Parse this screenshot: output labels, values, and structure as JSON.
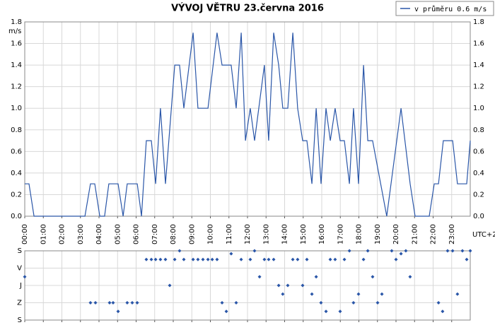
{
  "chart_data": [
    {
      "type": "line",
      "title": "VÝVOJ VĚTRU  23.června 2016",
      "y_label": "m/s",
      "x_label": "UTC+2",
      "legend": "top-right",
      "grid": true,
      "color": "#2a56a8",
      "series": [
        {
          "name": "v průměru 0.6 m/s",
          "color": "#2a56a8",
          "x": [
            0,
            0.23,
            0.5,
            3.24,
            3.54,
            3.77,
            4.04,
            4.3,
            4.53,
            5.03,
            5.3,
            5.52,
            6.06,
            6.29,
            6.55,
            6.82,
            7.05,
            7.31,
            7.58,
            8.08,
            8.34,
            8.57,
            9.07,
            9.33,
            9.87,
            10.36,
            10.63,
            11.12,
            11.39,
            11.66,
            11.89,
            12.15,
            12.38,
            12.91,
            13.14,
            13.41,
            13.68,
            13.9,
            14.17,
            14.44,
            14.7,
            14.97,
            15.2,
            15.47,
            15.7,
            15.96,
            16.23,
            16.46,
            16.72,
            16.99,
            17.22,
            17.49,
            17.71,
            17.98,
            18.25,
            18.48,
            18.74,
            19.5,
            20.27,
            20.76,
            21.03,
            21.79,
            22.06,
            22.29,
            22.55,
            23.05,
            23.31,
            23.81,
            24
          ],
          "values": [
            0.3,
            0.3,
            0,
            0,
            0.3,
            0.3,
            0,
            0,
            0.3,
            0.3,
            0,
            0.3,
            0.3,
            0,
            0.7,
            0.7,
            0.3,
            1.0,
            0.3,
            1.4,
            1.4,
            1.0,
            1.7,
            1.0,
            1.0,
            1.7,
            1.4,
            1.4,
            1.0,
            1.7,
            0.7,
            1.0,
            0.7,
            1.4,
            0.7,
            1.7,
            1.4,
            1.0,
            1.0,
            1.7,
            1.0,
            0.7,
            0.7,
            0.3,
            1.0,
            0.3,
            1.0,
            0.7,
            1.0,
            0.7,
            0.7,
            0.3,
            1.0,
            0.3,
            1.4,
            0.7,
            0.7,
            0,
            1.0,
            0.3,
            0,
            0,
            0.3,
            0.3,
            0.7,
            0.7,
            0.3,
            0.3,
            0.7
          ]
        }
      ],
      "xlim": [
        0,
        24
      ],
      "xticks": [
        {
          "value": 0,
          "label": "00:00"
        },
        {
          "value": 1,
          "label": "01:00"
        },
        {
          "value": 2,
          "label": "02:00"
        },
        {
          "value": 3,
          "label": "03:00"
        },
        {
          "value": 4,
          "label": "04:00"
        },
        {
          "value": 5,
          "label": "05:00"
        },
        {
          "value": 6,
          "label": "06:00"
        },
        {
          "value": 7,
          "label": "07:00"
        },
        {
          "value": 8,
          "label": "08:00"
        },
        {
          "value": 9,
          "label": "09:00"
        },
        {
          "value": 10,
          "label": "10:00"
        },
        {
          "value": 11,
          "label": "11:00"
        },
        {
          "value": 12,
          "label": "12:00"
        },
        {
          "value": 13,
          "label": "13:00"
        },
        {
          "value": 14,
          "label": "14:00"
        },
        {
          "value": 15,
          "label": "15:00"
        },
        {
          "value": 16,
          "label": "16:00"
        },
        {
          "value": 17,
          "label": "17:00"
        },
        {
          "value": 18,
          "label": "18:00"
        },
        {
          "value": 19,
          "label": "19:00"
        },
        {
          "value": 20,
          "label": "20:00"
        },
        {
          "value": 21,
          "label": "21:00"
        },
        {
          "value": 22,
          "label": "22:00"
        },
        {
          "value": 23,
          "label": "23:00"
        }
      ],
      "ylim": [
        0,
        1.8
      ],
      "yticks": [
        {
          "value": 0,
          "label": "0.0"
        },
        0.2,
        0.4,
        0.6,
        0.8,
        {
          "value": 1,
          "label": "1.0"
        },
        1.2,
        1.4,
        1.6,
        1.8
      ]
    },
    {
      "type": "scatter",
      "grid": true,
      "color": "#2a56a8",
      "x": [
        0,
        3.54,
        3.81,
        4.57,
        4.76,
        5.03,
        5.52,
        5.79,
        6.06,
        6.55,
        6.82,
        7.05,
        7.31,
        7.58,
        7.81,
        8.08,
        8.34,
        8.57,
        9.07,
        9.33,
        9.6,
        9.87,
        10.1,
        10.36,
        10.63,
        10.86,
        11.12,
        11.39,
        11.66,
        12.15,
        12.38,
        12.65,
        12.91,
        13.14,
        13.41,
        13.68,
        13.9,
        14.17,
        14.44,
        14.7,
        14.97,
        15.2,
        15.47,
        15.7,
        15.96,
        16.23,
        16.46,
        16.72,
        16.99,
        17.22,
        17.49,
        17.71,
        17.98,
        18.25,
        18.48,
        18.74,
        19.01,
        19.24,
        19.77,
        20,
        20.27,
        20.53,
        20.76,
        22.29,
        22.51,
        22.78,
        23.05,
        23.31,
        23.58,
        23.81,
        24
      ],
      "values": [
        135,
        270,
        270,
        270,
        270,
        315,
        270,
        270,
        270,
        45,
        45,
        45,
        45,
        45,
        180,
        45,
        0,
        45,
        45,
        45,
        45,
        45,
        45,
        45,
        270,
        315,
        15,
        270,
        45,
        45,
        0,
        135,
        45,
        45,
        45,
        180,
        225,
        180,
        45,
        45,
        180,
        45,
        225,
        135,
        270,
        315,
        45,
        45,
        315,
        45,
        0,
        270,
        225,
        45,
        0,
        135,
        270,
        225,
        0,
        45,
        15,
        0,
        135,
        270,
        315,
        0,
        0,
        225,
        0,
        45,
        0
      ],
      "xlim": [
        0,
        24
      ],
      "ylim": [
        360,
        0
      ],
      "yticks": [
        {
          "value": 0,
          "label": "S"
        },
        {
          "value": 90,
          "label": "V"
        },
        {
          "value": 180,
          "label": "J"
        },
        {
          "value": 270,
          "label": "Z"
        },
        {
          "value": 360,
          "label": "S"
        }
      ]
    }
  ]
}
